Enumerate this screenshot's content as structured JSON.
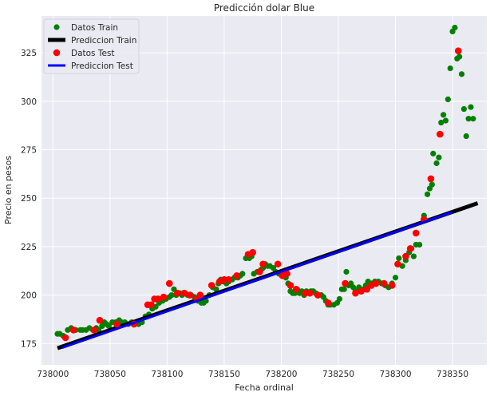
{
  "chart_data": {
    "type": "scatter",
    "title": "Predicción dolar Blue",
    "xlabel": "Fecha ordinal",
    "ylabel": "Precio en pesos",
    "xlim": [
      737990,
      738380
    ],
    "ylim": [
      164,
      344
    ],
    "xticks": [
      738000,
      738050,
      738100,
      738150,
      738200,
      738250,
      738300,
      738350
    ],
    "yticks": [
      175,
      200,
      225,
      250,
      275,
      300,
      325
    ],
    "grid": true,
    "legend_position": "top-left",
    "colors": {
      "background": "#eaeaf2",
      "grid": "#ffffff",
      "train_points": "#008000",
      "train_line": "#000000",
      "test_points": "#ff0000",
      "test_line": "#0000ff"
    },
    "legend": [
      {
        "key": "train_points",
        "label": "Datos Train",
        "marker": "dot"
      },
      {
        "key": "train_line",
        "label": "Prediccion Train",
        "marker": "line"
      },
      {
        "key": "test_points",
        "label": "Datos Test",
        "marker": "dot"
      },
      {
        "key": "test_line",
        "label": "Prediccion Test",
        "marker": "line"
      }
    ],
    "series": [
      {
        "name": "Datos Train",
        "kind": "points",
        "color": "#008000",
        "points": [
          [
            738004,
            180
          ],
          [
            738006,
            180
          ],
          [
            738009,
            179
          ],
          [
            738013,
            182
          ],
          [
            738016,
            183
          ],
          [
            738020,
            182
          ],
          [
            738024,
            182
          ],
          [
            738026,
            182
          ],
          [
            738029,
            182
          ],
          [
            738032,
            183
          ],
          [
            738035,
            182
          ],
          [
            738038,
            183
          ],
          [
            738040,
            182
          ],
          [
            738043,
            184
          ],
          [
            738045,
            186
          ],
          [
            738047,
            185
          ],
          [
            738049,
            184
          ],
          [
            738052,
            186
          ],
          [
            738055,
            186
          ],
          [
            738058,
            187
          ],
          [
            738060,
            186
          ],
          [
            738063,
            186
          ],
          [
            738066,
            185
          ],
          [
            738069,
            186
          ],
          [
            738072,
            185
          ],
          [
            738075,
            185
          ],
          [
            738078,
            186
          ],
          [
            738081,
            189
          ],
          [
            738084,
            190
          ],
          [
            738087,
            193
          ],
          [
            738090,
            194
          ],
          [
            738093,
            196
          ],
          [
            738096,
            197
          ],
          [
            738099,
            198
          ],
          [
            738102,
            199
          ],
          [
            738104,
            200
          ],
          [
            738106,
            203
          ],
          [
            738108,
            200
          ],
          [
            738111,
            201
          ],
          [
            738113,
            200
          ],
          [
            738116,
            201
          ],
          [
            738118,
            200
          ],
          [
            738121,
            200
          ],
          [
            738124,
            199
          ],
          [
            738127,
            197
          ],
          [
            738130,
            196
          ],
          [
            738132,
            196
          ],
          [
            738134,
            197
          ],
          [
            738137,
            200
          ],
          [
            738140,
            204
          ],
          [
            738143,
            203
          ],
          [
            738145,
            206
          ],
          [
            738147,
            208
          ],
          [
            738149,
            207
          ],
          [
            738152,
            206
          ],
          [
            738154,
            207
          ],
          [
            738157,
            208
          ],
          [
            738159,
            209
          ],
          [
            738162,
            209
          ],
          [
            738164,
            210
          ],
          [
            738166,
            211
          ],
          [
            738169,
            219
          ],
          [
            738172,
            219
          ],
          [
            738174,
            220
          ],
          [
            738176,
            211
          ],
          [
            738179,
            212
          ],
          [
            738182,
            213
          ],
          [
            738184,
            214
          ],
          [
            738186,
            216
          ],
          [
            738188,
            215
          ],
          [
            738190,
            215
          ],
          [
            738193,
            214
          ],
          [
            738195,
            212
          ],
          [
            738198,
            211
          ],
          [
            738200,
            211
          ],
          [
            738202,
            210
          ],
          [
            738204,
            209
          ],
          [
            738206,
            206
          ],
          [
            738208,
            202
          ],
          [
            738210,
            201
          ],
          [
            738212,
            201
          ],
          [
            738214,
            203
          ],
          [
            738216,
            201
          ],
          [
            738218,
            202
          ],
          [
            738220,
            200
          ],
          [
            738222,
            202
          ],
          [
            738224,
            201
          ],
          [
            738226,
            202
          ],
          [
            738228,
            202
          ],
          [
            738230,
            201
          ],
          [
            738232,
            200
          ],
          [
            738235,
            200
          ],
          [
            738237,
            199
          ],
          [
            738239,
            197
          ],
          [
            738241,
            195
          ],
          [
            738243,
            195
          ],
          [
            738246,
            195
          ],
          [
            738249,
            196
          ],
          [
            738251,
            198
          ],
          [
            738253,
            203
          ],
          [
            738255,
            203
          ],
          [
            738257,
            212
          ],
          [
            738259,
            205
          ],
          [
            738261,
            206
          ],
          [
            738263,
            204
          ],
          [
            738265,
            202
          ],
          [
            738268,
            204
          ],
          [
            738270,
            203
          ],
          [
            738272,
            203
          ],
          [
            738274,
            205
          ],
          [
            738276,
            207
          ],
          [
            738279,
            206
          ],
          [
            738282,
            207
          ],
          [
            738285,
            207
          ],
          [
            738288,
            206
          ],
          [
            738291,
            205
          ],
          [
            738294,
            204
          ],
          [
            738297,
            206
          ],
          [
            738300,
            209
          ],
          [
            738303,
            219
          ],
          [
            738306,
            215
          ],
          [
            738309,
            218
          ],
          [
            738312,
            222
          ],
          [
            738314,
            224
          ],
          [
            738316,
            220
          ],
          [
            738318,
            226
          ],
          [
            738321,
            226
          ],
          [
            738325,
            241
          ],
          [
            738328,
            252
          ],
          [
            738330,
            255
          ],
          [
            738332,
            257
          ],
          [
            738333,
            273
          ],
          [
            738336,
            268
          ],
          [
            738338,
            271
          ],
          [
            738340,
            289
          ],
          [
            738342,
            293
          ],
          [
            738344,
            290
          ],
          [
            738346,
            301
          ],
          [
            738348,
            317
          ],
          [
            738350,
            336
          ],
          [
            738352,
            338
          ],
          [
            738354,
            322
          ],
          [
            738356,
            323
          ],
          [
            738358,
            314
          ],
          [
            738360,
            296
          ],
          [
            738362,
            282
          ],
          [
            738364,
            291
          ],
          [
            738366,
            297
          ],
          [
            738368,
            291
          ]
        ]
      },
      {
        "name": "Prediccion Train",
        "kind": "line",
        "color": "#000000",
        "points": [
          [
            738004,
            172.6
          ],
          [
            738372,
            247.4
          ]
        ]
      },
      {
        "name": "Datos Test",
        "kind": "points",
        "color": "#ff0000",
        "points": [
          [
            738011,
            178
          ],
          [
            738018,
            182
          ],
          [
            738036,
            182
          ],
          [
            738041,
            187
          ],
          [
            738056,
            185
          ],
          [
            738071,
            185
          ],
          [
            738083,
            195
          ],
          [
            738086,
            195
          ],
          [
            738089,
            198
          ],
          [
            738092,
            198
          ],
          [
            738097,
            199
          ],
          [
            738102,
            206
          ],
          [
            738109,
            201
          ],
          [
            738115,
            201
          ],
          [
            738120,
            200
          ],
          [
            738126,
            198
          ],
          [
            738129,
            200
          ],
          [
            738139,
            205
          ],
          [
            738146,
            207
          ],
          [
            738150,
            208
          ],
          [
            738154,
            208
          ],
          [
            738161,
            210
          ],
          [
            738171,
            221
          ],
          [
            738175,
            222
          ],
          [
            738181,
            212
          ],
          [
            738184,
            216
          ],
          [
            738197,
            216
          ],
          [
            738201,
            210
          ],
          [
            738205,
            211
          ],
          [
            738208,
            205
          ],
          [
            738213,
            203
          ],
          [
            738221,
            201
          ],
          [
            738225,
            201
          ],
          [
            738232,
            200
          ],
          [
            738241,
            196
          ],
          [
            738256,
            206
          ],
          [
            738265,
            201
          ],
          [
            738270,
            202
          ],
          [
            738275,
            203
          ],
          [
            738279,
            205
          ],
          [
            738283,
            206
          ],
          [
            738290,
            206
          ],
          [
            738297,
            205
          ],
          [
            738302,
            216
          ],
          [
            738309,
            220
          ],
          [
            738313,
            224
          ],
          [
            738318,
            232
          ],
          [
            738325,
            239
          ],
          [
            738331,
            260
          ],
          [
            738339,
            283
          ],
          [
            738355,
            326
          ]
        ]
      },
      {
        "name": "Prediccion Test",
        "kind": "line",
        "color": "#0000ff",
        "points": [
          [
            738008,
            172.8
          ],
          [
            738350,
            242.8
          ]
        ]
      }
    ]
  }
}
